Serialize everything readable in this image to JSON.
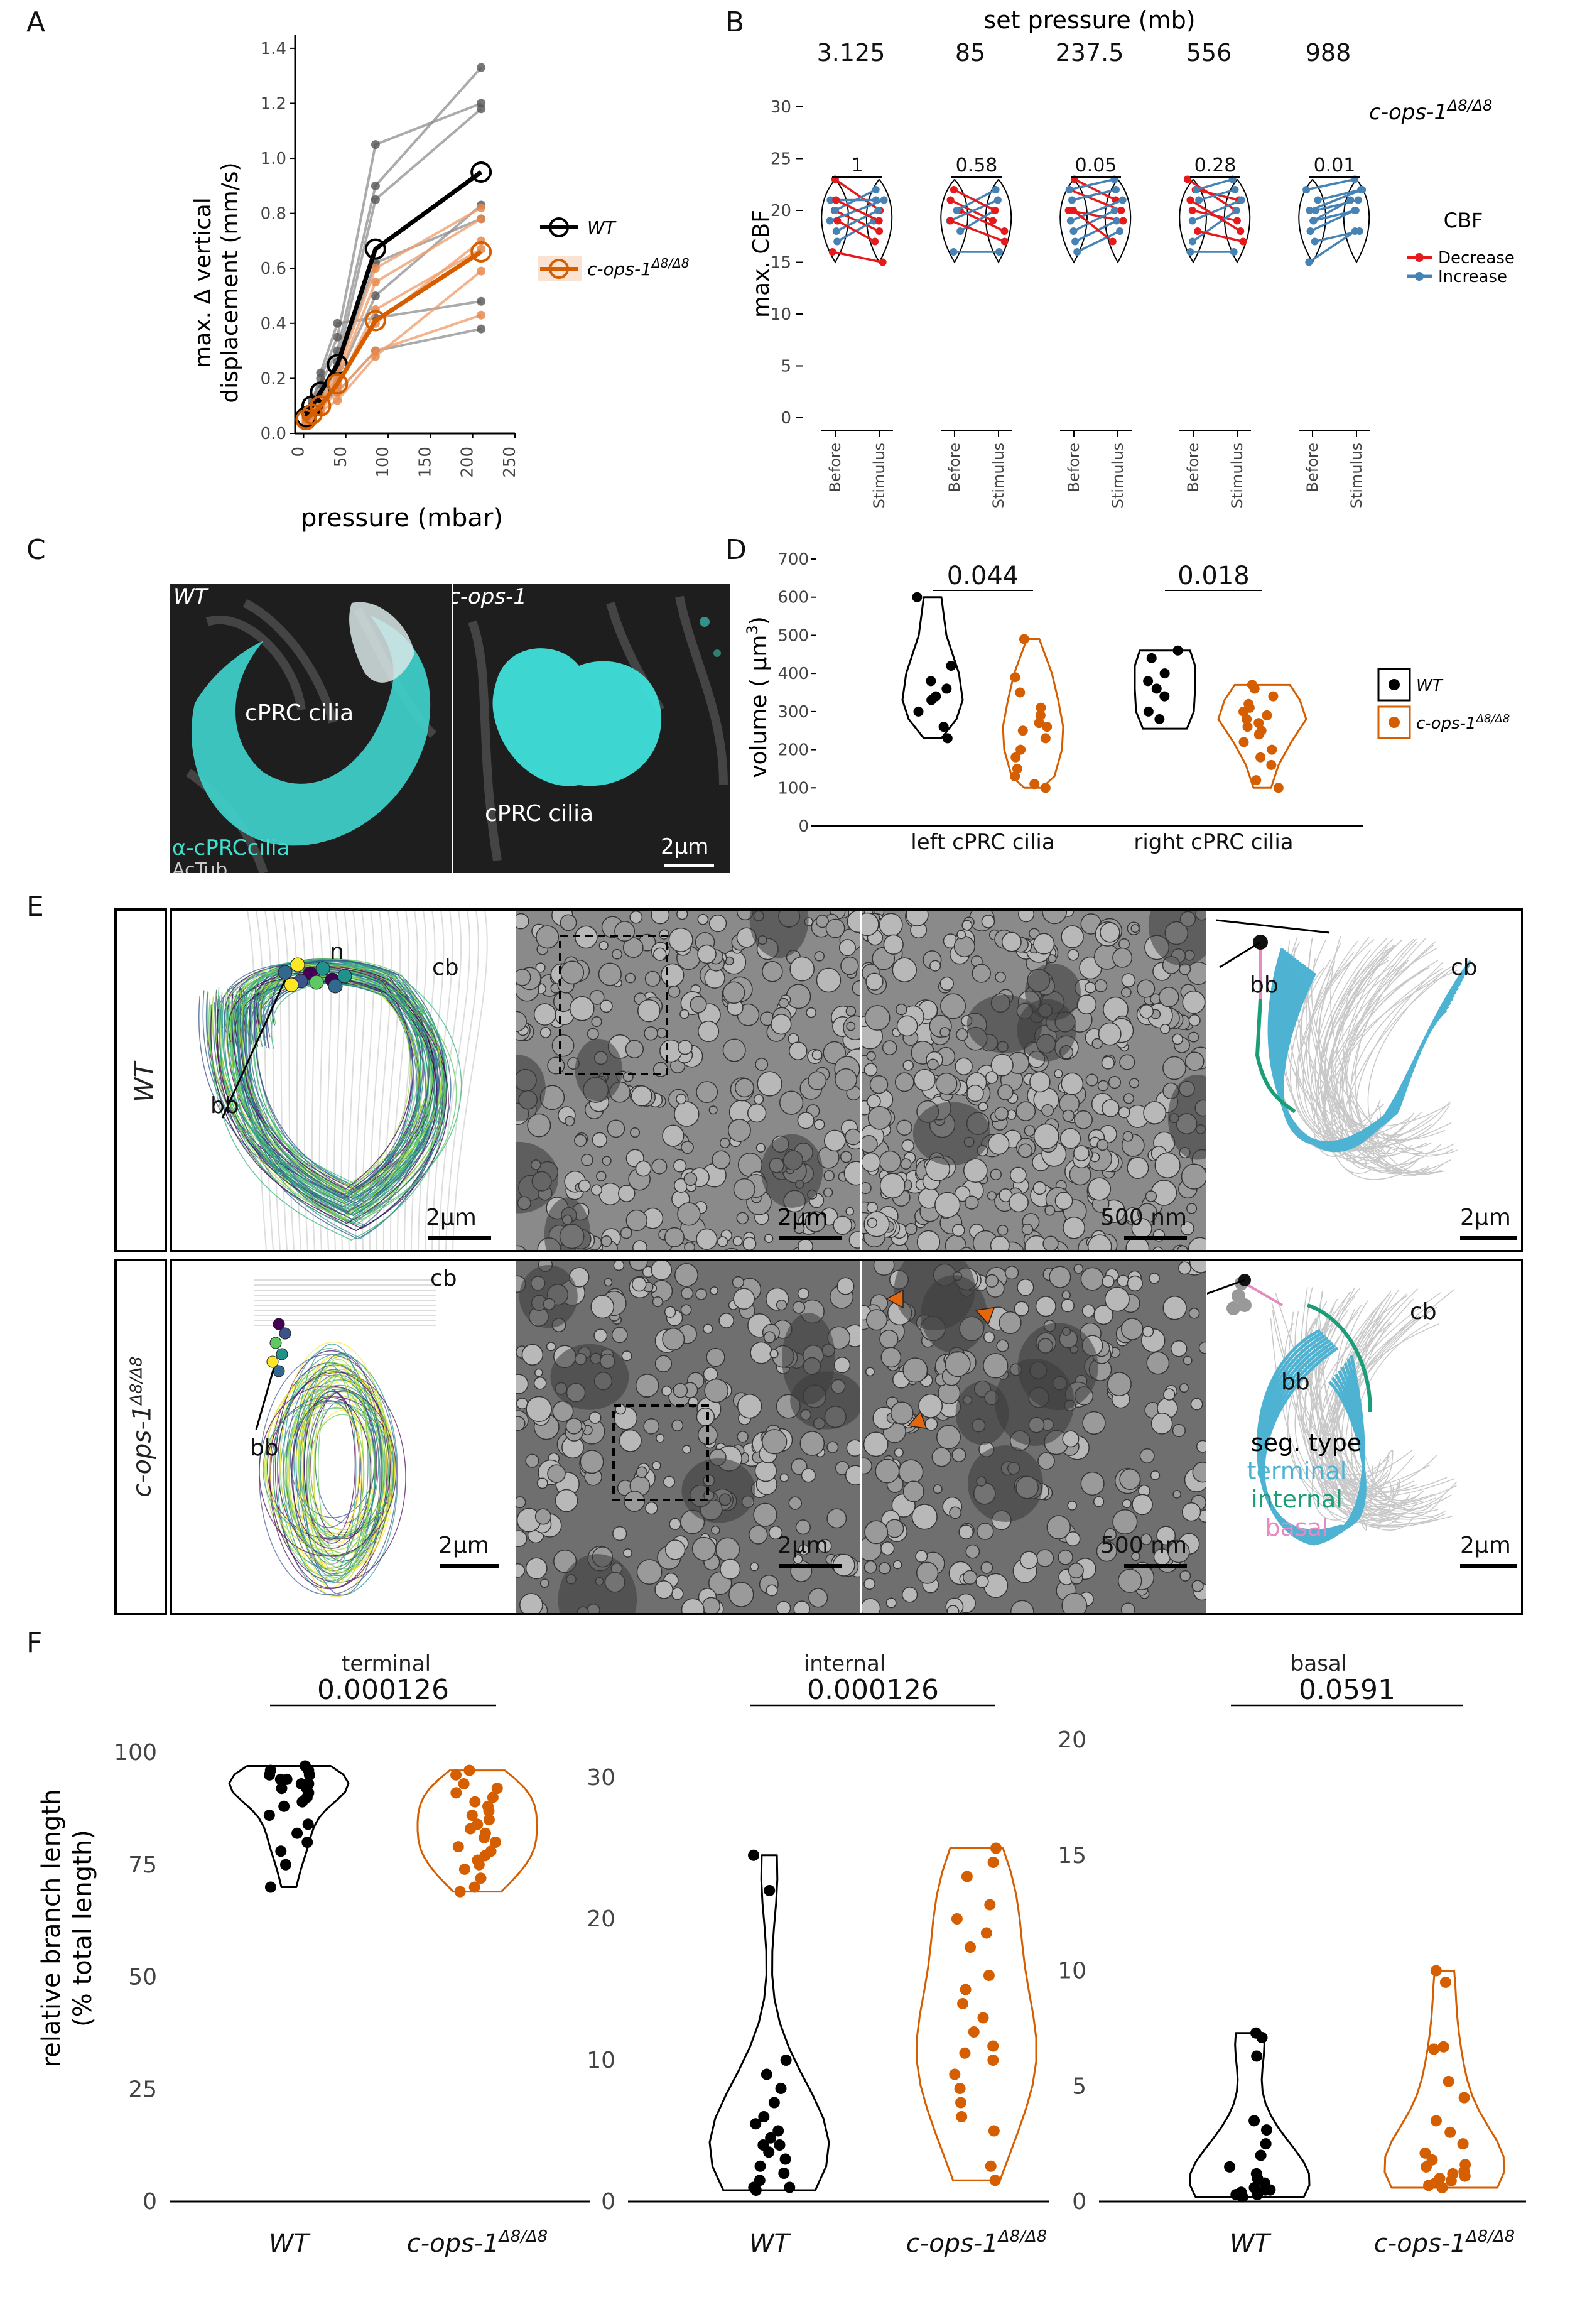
{
  "panels": {
    "A": "A",
    "B": "B",
    "C": "C",
    "D": "D",
    "E": "E",
    "F": "F"
  },
  "colors": {
    "wt": "#000000",
    "mut": "#d55e00",
    "decrease": "#e41a1c",
    "increase": "#4682b4",
    "cyan": "#40e0d0",
    "terminal": "#4eb3d3",
    "internal": "#1b9e77",
    "basal": "#e78ac3"
  },
  "panelA": {
    "ylabel_line1": "max. Δ vertical",
    "ylabel_line2": "displacement (mm/s)",
    "xlabel": "pressure (mbar)",
    "legend": {
      "wt": "WT",
      "mut_base": "c-ops-1",
      "mut_sup": "Δ8/Δ8"
    }
  },
  "panelB": {
    "title": "set pressure (mb)",
    "pressures": [
      "3.125",
      "85",
      "237.5",
      "556",
      "988"
    ],
    "pvalues": [
      "1",
      "0.58",
      "0.05",
      "0.28",
      "0.01"
    ],
    "ylabel": "max. CBF",
    "xticks": [
      "Before",
      "Stimulus"
    ],
    "genotype_base": "c-ops-1",
    "genotype_sup": "Δ8/Δ8",
    "legend_title": "CBF",
    "legend_items": [
      "Decrease",
      "Increase"
    ]
  },
  "panelC": {
    "wt_label": "WT",
    "mut_label": "c-ops-1",
    "cilia_label": "cPRC cilia",
    "stain1": "α-cPRCcilia",
    "stain2": "AcTub",
    "scale": "2μm"
  },
  "panelD": {
    "ylabel": "volume ( μm",
    "ylabel_sup": "3",
    "ylabel_end": ")",
    "categories": [
      "left cPRC cilia",
      "right cPRC cilia"
    ],
    "pvalues": [
      "0.044",
      "0.018"
    ],
    "legend": {
      "wt": "WT",
      "mut_base": "c-ops-1",
      "mut_sup": "Δ8/Δ8"
    }
  },
  "panelE": {
    "wt_row": "WT",
    "mut_row_base": "c-ops-1",
    "mut_row_sup": "Δ8/Δ8",
    "cb": "cb",
    "bb": "bb",
    "n": "n",
    "scale_2um": "2μm",
    "scale_500nm": "500 nm",
    "seg_title": "seg. type",
    "seg_terminal": "terminal",
    "seg_internal": "internal",
    "seg_basal": "basal"
  },
  "panelF": {
    "ylabel_line1": "relative branch length",
    "ylabel_line2": "(% total length)",
    "titles": [
      "terminal",
      "internal",
      "basal"
    ],
    "pvalues": [
      "0.000126",
      "0.000126",
      "0.0591"
    ],
    "xlabels": {
      "wt": "WT",
      "mut_base": "c-ops-1",
      "mut_sup": "Δ8/Δ8"
    }
  },
  "chart_data": [
    {
      "type": "line",
      "panel": "A",
      "xlabel": "pressure (mbar)",
      "ylabel": "max. Δ vertical displacement (mm/s)",
      "xlim": [
        -10,
        250
      ],
      "ylim": [
        0,
        1.45
      ],
      "xticks": [
        0,
        50,
        100,
        150,
        200,
        250
      ],
      "yticks": [
        0.0,
        0.2,
        0.4,
        0.6,
        0.8,
        1.0,
        1.2,
        1.4
      ],
      "series": [
        {
          "name": "WT",
          "x": [
            3,
            10,
            20,
            40,
            85,
            210
          ],
          "values": [
            0.06,
            0.1,
            0.15,
            0.25,
            0.67,
            0.95
          ]
        },
        {
          "name": "c-ops-1Δ8/Δ8",
          "x": [
            3,
            10,
            20,
            40,
            85,
            210
          ],
          "values": [
            0.05,
            0.07,
            0.1,
            0.18,
            0.41,
            0.66
          ]
        }
      ]
    },
    {
      "type": "scatter",
      "panel": "B",
      "ylabel": "max. CBF",
      "ylim": [
        0,
        30
      ],
      "yticks": [
        0,
        5,
        10,
        15,
        20,
        25,
        30
      ],
      "groups": [
        "3.125",
        "85",
        "237.5",
        "556",
        "988"
      ],
      "pvalues": [
        1,
        0.58,
        0.05,
        0.28,
        0.01
      ]
    },
    {
      "type": "scatter",
      "panel": "D",
      "ylabel": "volume (μm3)",
      "ylim": [
        0,
        700
      ],
      "yticks": [
        0,
        100,
        200,
        300,
        400,
        500,
        600,
        700
      ],
      "categories": [
        "left cPRC cilia",
        "right cPRC cilia"
      ],
      "series": [
        {
          "name": "WT",
          "left": [
            600,
            420,
            380,
            360,
            340,
            330,
            300,
            260,
            230
          ],
          "right": [
            460,
            440,
            400,
            380,
            360,
            340,
            300,
            280
          ]
        },
        {
          "name": "c-ops-1Δ8/Δ8",
          "left": [
            490,
            390,
            350,
            310,
            290,
            270,
            260,
            250,
            230,
            200,
            180,
            150,
            130,
            110,
            100
          ],
          "right": [
            370,
            360,
            340,
            320,
            310,
            300,
            290,
            280,
            270,
            260,
            250,
            240,
            220,
            200,
            180,
            160,
            120,
            100
          ]
        }
      ],
      "pvalues": [
        0.044,
        0.018
      ]
    },
    {
      "type": "scatter",
      "panel": "F",
      "subplots": [
        {
          "title": "terminal",
          "ylim": [
            0,
            100
          ],
          "yticks": [
            0,
            25,
            50,
            75,
            100
          ],
          "pvalue": 0.000126,
          "WT": [
            97,
            96,
            96,
            95,
            95,
            94,
            94,
            93,
            93,
            92,
            92,
            91,
            90,
            89,
            88,
            86,
            84,
            82,
            80,
            78,
            75,
            70
          ],
          "c-ops-1Δ8/Δ8": [
            96,
            95,
            93,
            92,
            91,
            90,
            89,
            88,
            87,
            86,
            85,
            84,
            83,
            82,
            81,
            80,
            79,
            78,
            77,
            76,
            75,
            74,
            72,
            70,
            69
          ]
        },
        {
          "title": "internal",
          "ylim": [
            0,
            30
          ],
          "yticks": [
            0,
            10,
            20,
            30
          ],
          "pvalue": 0.000126,
          "WT": [
            24.5,
            22,
            10,
            9,
            8,
            7,
            6,
            5.5,
            5,
            4.5,
            4,
            4,
            3.5,
            3,
            2.5,
            2,
            1.5,
            1,
            1,
            0.8
          ],
          "c-ops-1Δ8/Δ8": [
            25,
            24,
            23,
            21,
            20,
            19,
            18,
            16,
            15,
            14,
            13,
            12,
            11,
            10.5,
            10,
            9,
            8,
            7,
            6,
            5,
            2.5,
            1.5
          ]
        },
        {
          "title": "basal",
          "ylim": [
            0,
            20
          ],
          "yticks": [
            0,
            5,
            10,
            15,
            20
          ],
          "pvalue": 0.0591,
          "WT": [
            7.3,
            7.1,
            6.3,
            3.5,
            3.1,
            2.5,
            2,
            1.5,
            1.2,
            1,
            0.8,
            0.6,
            0.5,
            0.5,
            0.4,
            0.3,
            0.3,
            0.2
          ],
          "c-ops-1Δ8/Δ8": [
            10,
            9.5,
            6.7,
            6.6,
            5.2,
            4.5,
            3.5,
            3,
            2.5,
            2.1,
            1.8,
            1.6,
            1.5,
            1.3,
            1.2,
            1.1,
            1,
            0.9,
            0.8,
            0.7,
            0.6
          ]
        }
      ]
    }
  ]
}
